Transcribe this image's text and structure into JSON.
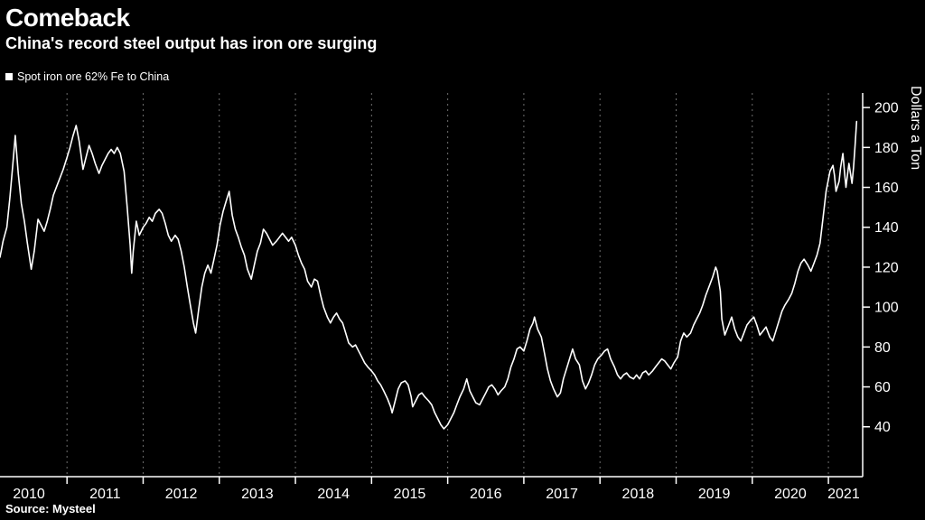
{
  "header": {
    "title": "Comeback",
    "subtitle": "China's record steel output has iron ore surging"
  },
  "legend": {
    "label": "Spot iron ore 62% Fe to China"
  },
  "footer": {
    "source": "Source: Mysteel"
  },
  "colors": {
    "background": "#000000",
    "foreground": "#ffffff",
    "line": "#ffffff",
    "grid": "#6e6e6e",
    "axis": "#ffffff"
  },
  "chart_data": {
    "type": "line",
    "title": "Comeback",
    "subtitle": "China's record steel output has iron ore surging",
    "series_name": "Spot iron ore 62% Fe to China",
    "ylabel": "Dollars a Ton",
    "ylim": [
      15,
      207.3
    ],
    "yticks": [
      40,
      60,
      80,
      100,
      120,
      140,
      160,
      180,
      200
    ],
    "xlim": [
      2010.12,
      2021.45
    ],
    "grid": "vertical-dashed",
    "legend_position": "top-left",
    "year_boundaries": [
      2011,
      2012,
      2013,
      2014,
      2015,
      2016,
      2017,
      2018,
      2019,
      2020,
      2021
    ],
    "x_year_labels": [
      {
        "label": "2010",
        "pos": 2010.5
      },
      {
        "label": "2011",
        "pos": 2011.5
      },
      {
        "label": "2012",
        "pos": 2012.5
      },
      {
        "label": "2013",
        "pos": 2013.5
      },
      {
        "label": "2014",
        "pos": 2014.5
      },
      {
        "label": "2015",
        "pos": 2015.5
      },
      {
        "label": "2016",
        "pos": 2016.5
      },
      {
        "label": "2017",
        "pos": 2017.5
      },
      {
        "label": "2018",
        "pos": 2018.5
      },
      {
        "label": "2019",
        "pos": 2019.5
      },
      {
        "label": "2020",
        "pos": 2020.5
      },
      {
        "label": "2021",
        "pos": 2021.2
      }
    ],
    "points": [
      [
        2010.12,
        125
      ],
      [
        2010.16,
        133
      ],
      [
        2010.21,
        140
      ],
      [
        2010.25,
        155
      ],
      [
        2010.29,
        172
      ],
      [
        2010.32,
        186
      ],
      [
        2010.36,
        167
      ],
      [
        2010.4,
        152
      ],
      [
        2010.44,
        143
      ],
      [
        2010.48,
        132
      ],
      [
        2010.53,
        119
      ],
      [
        2010.57,
        128
      ],
      [
        2010.62,
        144
      ],
      [
        2010.66,
        141
      ],
      [
        2010.7,
        138
      ],
      [
        2010.74,
        143
      ],
      [
        2010.78,
        149
      ],
      [
        2010.82,
        156
      ],
      [
        2010.87,
        161
      ],
      [
        2010.91,
        165
      ],
      [
        2010.95,
        169
      ],
      [
        2011.0,
        175
      ],
      [
        2011.04,
        180
      ],
      [
        2011.08,
        186
      ],
      [
        2011.12,
        191
      ],
      [
        2011.16,
        183
      ],
      [
        2011.21,
        169
      ],
      [
        2011.25,
        175
      ],
      [
        2011.29,
        181
      ],
      [
        2011.33,
        177
      ],
      [
        2011.37,
        172
      ],
      [
        2011.42,
        167
      ],
      [
        2011.46,
        171
      ],
      [
        2011.5,
        174
      ],
      [
        2011.54,
        177
      ],
      [
        2011.58,
        179
      ],
      [
        2011.62,
        177
      ],
      [
        2011.66,
        180
      ],
      [
        2011.7,
        177
      ],
      [
        2011.75,
        168
      ],
      [
        2011.79,
        150
      ],
      [
        2011.83,
        131
      ],
      [
        2011.85,
        117
      ],
      [
        2011.87,
        128
      ],
      [
        2011.91,
        143
      ],
      [
        2011.95,
        136
      ],
      [
        2012.0,
        140
      ],
      [
        2012.04,
        142
      ],
      [
        2012.08,
        145
      ],
      [
        2012.12,
        143
      ],
      [
        2012.16,
        147
      ],
      [
        2012.21,
        149
      ],
      [
        2012.25,
        147
      ],
      [
        2012.29,
        142
      ],
      [
        2012.33,
        136
      ],
      [
        2012.37,
        133
      ],
      [
        2012.42,
        136
      ],
      [
        2012.46,
        134
      ],
      [
        2012.5,
        128
      ],
      [
        2012.54,
        120
      ],
      [
        2012.58,
        110
      ],
      [
        2012.62,
        101
      ],
      [
        2012.66,
        92
      ],
      [
        2012.69,
        87
      ],
      [
        2012.73,
        99
      ],
      [
        2012.77,
        110
      ],
      [
        2012.81,
        117
      ],
      [
        2012.85,
        121
      ],
      [
        2012.89,
        117
      ],
      [
        2012.93,
        124
      ],
      [
        2012.97,
        131
      ],
      [
        2013.01,
        141
      ],
      [
        2013.05,
        148
      ],
      [
        2013.09,
        153
      ],
      [
        2013.13,
        158
      ],
      [
        2013.17,
        146
      ],
      [
        2013.21,
        139
      ],
      [
        2013.25,
        135
      ],
      [
        2013.29,
        130
      ],
      [
        2013.33,
        126
      ],
      [
        2013.37,
        119
      ],
      [
        2013.42,
        114
      ],
      [
        2013.46,
        121
      ],
      [
        2013.5,
        128
      ],
      [
        2013.54,
        132
      ],
      [
        2013.58,
        139
      ],
      [
        2013.62,
        137
      ],
      [
        2013.66,
        134
      ],
      [
        2013.7,
        131
      ],
      [
        2013.75,
        133
      ],
      [
        2013.79,
        135
      ],
      [
        2013.83,
        137
      ],
      [
        2013.87,
        135
      ],
      [
        2013.91,
        133
      ],
      [
        2013.95,
        135
      ],
      [
        2014.0,
        131
      ],
      [
        2014.04,
        126
      ],
      [
        2014.08,
        122
      ],
      [
        2014.12,
        119
      ],
      [
        2014.16,
        113
      ],
      [
        2014.21,
        110
      ],
      [
        2014.25,
        114
      ],
      [
        2014.29,
        113
      ],
      [
        2014.33,
        106
      ],
      [
        2014.37,
        100
      ],
      [
        2014.42,
        95
      ],
      [
        2014.46,
        92
      ],
      [
        2014.5,
        95
      ],
      [
        2014.54,
        97
      ],
      [
        2014.58,
        94
      ],
      [
        2014.62,
        92
      ],
      [
        2014.66,
        87
      ],
      [
        2014.7,
        82
      ],
      [
        2014.75,
        80
      ],
      [
        2014.79,
        81
      ],
      [
        2014.83,
        78
      ],
      [
        2014.87,
        75
      ],
      [
        2014.91,
        72
      ],
      [
        2014.95,
        70
      ],
      [
        2015.0,
        68
      ],
      [
        2015.04,
        66
      ],
      [
        2015.08,
        63
      ],
      [
        2015.12,
        61
      ],
      [
        2015.16,
        58
      ],
      [
        2015.21,
        54
      ],
      [
        2015.25,
        50
      ],
      [
        2015.27,
        47
      ],
      [
        2015.31,
        53
      ],
      [
        2015.35,
        59
      ],
      [
        2015.39,
        62
      ],
      [
        2015.44,
        63
      ],
      [
        2015.48,
        61
      ],
      [
        2015.52,
        55
      ],
      [
        2015.54,
        50
      ],
      [
        2015.58,
        53
      ],
      [
        2015.62,
        56
      ],
      [
        2015.66,
        57
      ],
      [
        2015.7,
        55
      ],
      [
        2015.75,
        53
      ],
      [
        2015.79,
        51
      ],
      [
        2015.83,
        47
      ],
      [
        2015.87,
        44
      ],
      [
        2015.91,
        41
      ],
      [
        2015.95,
        39
      ],
      [
        2016.0,
        41
      ],
      [
        2016.04,
        44
      ],
      [
        2016.08,
        47
      ],
      [
        2016.12,
        51
      ],
      [
        2016.16,
        55
      ],
      [
        2016.21,
        59
      ],
      [
        2016.25,
        64
      ],
      [
        2016.29,
        58
      ],
      [
        2016.33,
        55
      ],
      [
        2016.37,
        52
      ],
      [
        2016.42,
        51
      ],
      [
        2016.46,
        54
      ],
      [
        2016.5,
        57
      ],
      [
        2016.54,
        60
      ],
      [
        2016.58,
        61
      ],
      [
        2016.62,
        59
      ],
      [
        2016.66,
        56
      ],
      [
        2016.7,
        58
      ],
      [
        2016.75,
        60
      ],
      [
        2016.79,
        64
      ],
      [
        2016.83,
        70
      ],
      [
        2016.87,
        74
      ],
      [
        2016.91,
        79
      ],
      [
        2016.95,
        80
      ],
      [
        2017.0,
        78
      ],
      [
        2017.04,
        83
      ],
      [
        2017.08,
        89
      ],
      [
        2017.12,
        92
      ],
      [
        2017.14,
        95
      ],
      [
        2017.18,
        89
      ],
      [
        2017.23,
        85
      ],
      [
        2017.27,
        77
      ],
      [
        2017.31,
        69
      ],
      [
        2017.35,
        63
      ],
      [
        2017.39,
        59
      ],
      [
        2017.44,
        55
      ],
      [
        2017.48,
        57
      ],
      [
        2017.52,
        64
      ],
      [
        2017.56,
        69
      ],
      [
        2017.6,
        74
      ],
      [
        2017.64,
        79
      ],
      [
        2017.68,
        74
      ],
      [
        2017.73,
        71
      ],
      [
        2017.77,
        63
      ],
      [
        2017.81,
        59
      ],
      [
        2017.85,
        62
      ],
      [
        2017.89,
        66
      ],
      [
        2017.93,
        71
      ],
      [
        2017.97,
        74
      ],
      [
        2018.02,
        76
      ],
      [
        2018.06,
        78
      ],
      [
        2018.1,
        79
      ],
      [
        2018.14,
        74
      ],
      [
        2018.19,
        70
      ],
      [
        2018.23,
        66
      ],
      [
        2018.27,
        64
      ],
      [
        2018.31,
        66
      ],
      [
        2018.35,
        67
      ],
      [
        2018.39,
        65
      ],
      [
        2018.44,
        64
      ],
      [
        2018.48,
        66
      ],
      [
        2018.52,
        64
      ],
      [
        2018.56,
        67
      ],
      [
        2018.6,
        68
      ],
      [
        2018.64,
        66
      ],
      [
        2018.69,
        68
      ],
      [
        2018.73,
        70
      ],
      [
        2018.77,
        72
      ],
      [
        2018.81,
        74
      ],
      [
        2018.85,
        73
      ],
      [
        2018.89,
        71
      ],
      [
        2018.93,
        69
      ],
      [
        2018.97,
        72
      ],
      [
        2019.02,
        75
      ],
      [
        2019.06,
        83
      ],
      [
        2019.1,
        87
      ],
      [
        2019.14,
        85
      ],
      [
        2019.19,
        87
      ],
      [
        2019.23,
        91
      ],
      [
        2019.27,
        94
      ],
      [
        2019.31,
        97
      ],
      [
        2019.35,
        101
      ],
      [
        2019.39,
        106
      ],
      [
        2019.44,
        111
      ],
      [
        2019.48,
        115
      ],
      [
        2019.52,
        120
      ],
      [
        2019.54,
        118
      ],
      [
        2019.58,
        108
      ],
      [
        2019.6,
        94
      ],
      [
        2019.64,
        86
      ],
      [
        2019.69,
        91
      ],
      [
        2019.73,
        95
      ],
      [
        2019.77,
        89
      ],
      [
        2019.81,
        85
      ],
      [
        2019.85,
        83
      ],
      [
        2019.89,
        87
      ],
      [
        2019.93,
        91
      ],
      [
        2019.97,
        93
      ],
      [
        2020.02,
        95
      ],
      [
        2020.06,
        91
      ],
      [
        2020.1,
        86
      ],
      [
        2020.14,
        88
      ],
      [
        2020.18,
        90
      ],
      [
        2020.23,
        85
      ],
      [
        2020.27,
        83
      ],
      [
        2020.31,
        88
      ],
      [
        2020.35,
        93
      ],
      [
        2020.39,
        98
      ],
      [
        2020.43,
        101
      ],
      [
        2020.48,
        104
      ],
      [
        2020.52,
        107
      ],
      [
        2020.56,
        112
      ],
      [
        2020.6,
        118
      ],
      [
        2020.64,
        122
      ],
      [
        2020.68,
        124
      ],
      [
        2020.73,
        121
      ],
      [
        2020.77,
        118
      ],
      [
        2020.81,
        122
      ],
      [
        2020.85,
        126
      ],
      [
        2020.89,
        132
      ],
      [
        2020.93,
        145
      ],
      [
        2020.97,
        158
      ],
      [
        2021.02,
        168
      ],
      [
        2021.06,
        171
      ],
      [
        2021.08,
        166
      ],
      [
        2021.1,
        158
      ],
      [
        2021.14,
        163
      ],
      [
        2021.16,
        170
      ],
      [
        2021.19,
        177
      ],
      [
        2021.21,
        168
      ],
      [
        2021.23,
        160
      ],
      [
        2021.25,
        166
      ],
      [
        2021.27,
        172
      ],
      [
        2021.29,
        167
      ],
      [
        2021.31,
        162
      ],
      [
        2021.33,
        170
      ],
      [
        2021.35,
        181
      ],
      [
        2021.37,
        193
      ]
    ]
  }
}
